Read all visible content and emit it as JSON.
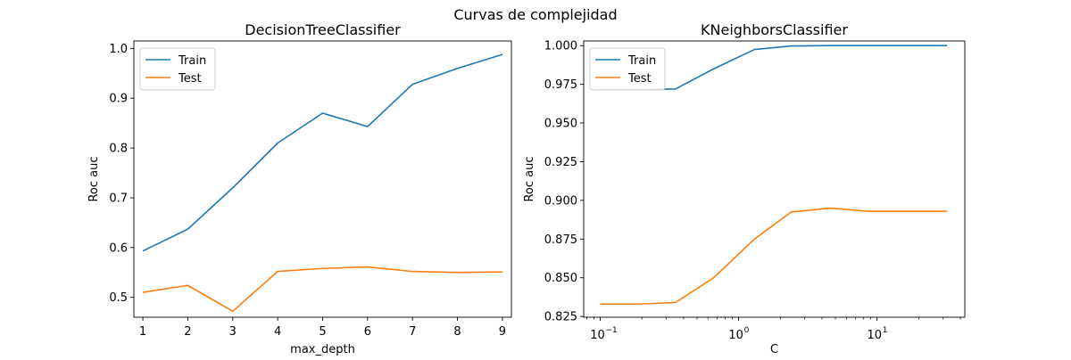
{
  "figure": {
    "suptitle": "Curvas de complejidad"
  },
  "chart_data": [
    {
      "type": "line",
      "title": "DecisionTreeClassifier",
      "xlabel": "max_depth",
      "ylabel": "Roc auc",
      "xscale": "linear",
      "xlim": [
        0.8,
        9.2
      ],
      "ylim": [
        0.46,
        1.015
      ],
      "xticks": [
        1,
        2,
        3,
        4,
        5,
        6,
        7,
        8,
        9
      ],
      "xtick_labels": [
        "1",
        "2",
        "3",
        "4",
        "5",
        "6",
        "7",
        "8",
        "9"
      ],
      "yticks": [
        0.5,
        0.6,
        0.7,
        0.8,
        0.9,
        1.0
      ],
      "ytick_labels": [
        "0.5",
        "0.6",
        "0.7",
        "0.8",
        "0.9",
        "1.0"
      ],
      "x": [
        1,
        2,
        3,
        4,
        5,
        6,
        7,
        8,
        9
      ],
      "series": [
        {
          "name": "Train",
          "color": "#1f77b4",
          "values": [
            0.593,
            0.637,
            0.72,
            0.81,
            0.87,
            0.843,
            0.928,
            0.96,
            0.988
          ]
        },
        {
          "name": "Test",
          "color": "#ff7f0e",
          "values": [
            0.51,
            0.524,
            0.472,
            0.552,
            0.558,
            0.561,
            0.552,
            0.55,
            0.551
          ]
        }
      ],
      "legend": "upper-left",
      "grid": false
    },
    {
      "type": "line",
      "title": "KNeighborsClassifier",
      "xlabel": "C",
      "ylabel": "Roc auc",
      "xscale": "log",
      "xlim": [
        0.076,
        43
      ],
      "ylim": [
        0.8245,
        1.003
      ],
      "xticks": [
        0.1,
        1,
        10
      ],
      "xtick_labels": [
        "10",
        "10",
        "10"
      ],
      "xtick_exponents": [
        "−1",
        "0",
        "1"
      ],
      "yticks": [
        0.825,
        0.85,
        0.875,
        0.9,
        0.925,
        0.95,
        0.975,
        1.0
      ],
      "ytick_labels": [
        "0.825",
        "0.850",
        "0.875",
        "0.900",
        "0.925",
        "0.950",
        "0.975",
        "1.000"
      ],
      "x": [
        0.1,
        0.185,
        0.35,
        0.66,
        1.3,
        2.4,
        4.6,
        8.6,
        32
      ],
      "series": [
        {
          "name": "Train",
          "color": "#1f77b4",
          "values": [
            0.9715,
            0.9715,
            0.972,
            0.985,
            0.9975,
            0.9998,
            1.0,
            1.0,
            1.0
          ]
        },
        {
          "name": "Test",
          "color": "#ff7f0e",
          "values": [
            0.833,
            0.833,
            0.834,
            0.85,
            0.875,
            0.8925,
            0.895,
            0.893,
            0.893
          ]
        }
      ],
      "legend": "upper-left",
      "grid": false
    }
  ]
}
